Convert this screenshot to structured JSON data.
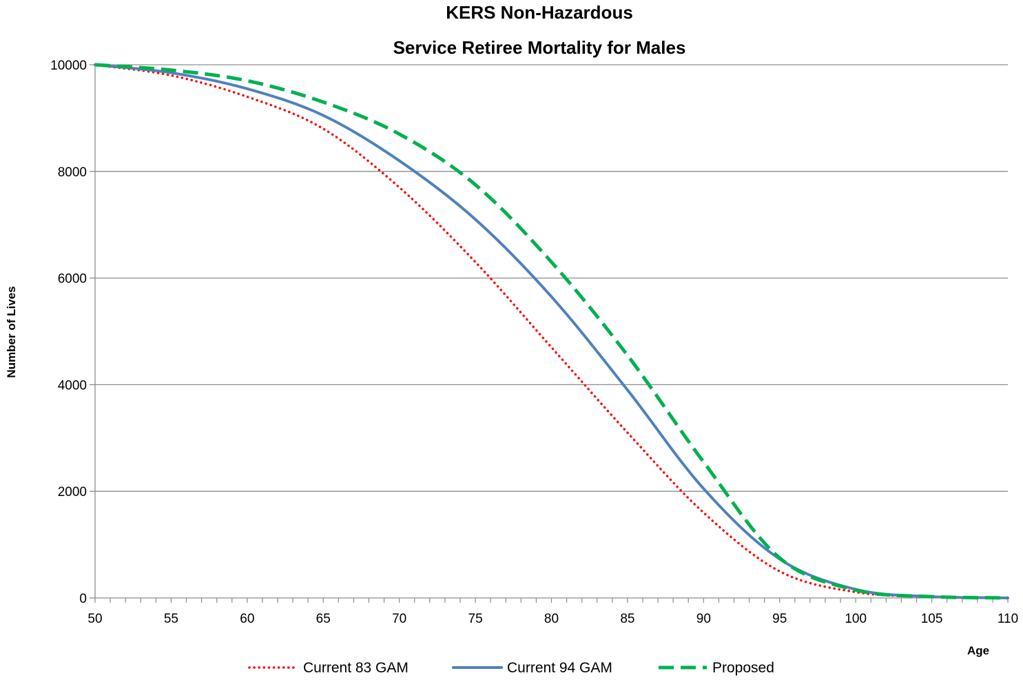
{
  "chart_data": {
    "type": "line",
    "title_line1": "KERS Non-Hazardous",
    "title_line2": "Service Retiree Mortality for Males",
    "xlabel": "Age",
    "ylabel": "Number of Lives",
    "xlim": [
      50,
      110
    ],
    "ylim": [
      0,
      10000
    ],
    "x_ticks": [
      "50",
      "55",
      "60",
      "65",
      "70",
      "75",
      "80",
      "85",
      "90",
      "95",
      "100",
      "105",
      "110"
    ],
    "y_ticks": [
      "0",
      "2000",
      "4000",
      "6000",
      "8000",
      "10000"
    ],
    "grid": "horizontal",
    "legend_position": "bottom",
    "x": [
      50,
      55,
      60,
      65,
      70,
      75,
      80,
      85,
      90,
      95,
      100,
      105,
      110
    ],
    "series": [
      {
        "name": "Current 83 GAM",
        "color": "#ff0000",
        "style": "dotted",
        "values": [
          10000,
          9800,
          9400,
          8800,
          7700,
          6300,
          4700,
          3100,
          1600,
          500,
          110,
          20,
          0
        ]
      },
      {
        "name": "Current 94 GAM",
        "color": "#4f81bd",
        "style": "solid",
        "values": [
          10000,
          9850,
          9550,
          9050,
          8200,
          7100,
          5650,
          3900,
          2050,
          730,
          160,
          25,
          0
        ]
      },
      {
        "name": "Proposed",
        "color": "#00b050",
        "style": "dashed",
        "values": [
          10000,
          9900,
          9700,
          9300,
          8700,
          7750,
          6300,
          4550,
          2550,
          750,
          150,
          25,
          0
        ]
      }
    ]
  }
}
